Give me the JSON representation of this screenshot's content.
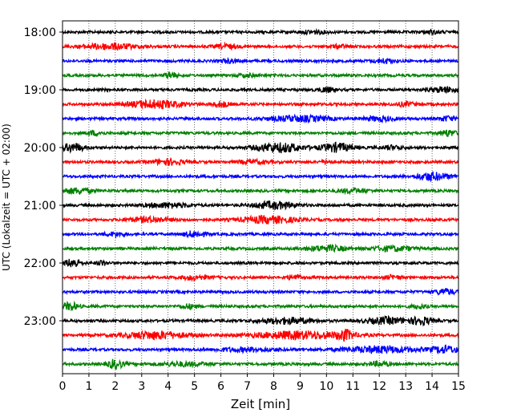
{
  "chart_data": {
    "type": "line",
    "title": "",
    "xlabel": "Zeit  [min]",
    "ylabel": "UTC (Lokalzeit = UTC + 02:00)",
    "xlim": [
      0,
      15
    ],
    "x_ticks": [
      0,
      1,
      2,
      3,
      4,
      5,
      6,
      7,
      8,
      9,
      10,
      11,
      12,
      13,
      14,
      15
    ],
    "y_tick_labels": [
      "18:00",
      "19:00",
      "20:00",
      "21:00",
      "22:00",
      "23:00"
    ],
    "grid": "vertical-dotted",
    "trace_colors": [
      "#000000",
      "#ff0000",
      "#0000ff",
      "#008000"
    ],
    "series": [
      {
        "start": "18:00",
        "color": "#000000",
        "bursts": [
          [
            9.5,
            0.5,
            1.2
          ],
          [
            14.0,
            0.4,
            1.0
          ]
        ]
      },
      {
        "start": "18:15",
        "color": "#ff0000",
        "bursts": [
          [
            1.8,
            1.0,
            2.2
          ],
          [
            6.2,
            0.4,
            1.6
          ],
          [
            10.5,
            0.3,
            1.2
          ]
        ]
      },
      {
        "start": "18:30",
        "color": "#0000ff",
        "bursts": [
          [
            6.3,
            0.3,
            1.2
          ],
          [
            12.2,
            0.4,
            1.6
          ]
        ]
      },
      {
        "start": "18:45",
        "color": "#008000",
        "bursts": [
          [
            4.1,
            0.2,
            2.4
          ],
          [
            7.0,
            0.4,
            1.0
          ]
        ]
      },
      {
        "start": "19:00",
        "color": "#000000",
        "bursts": [
          [
            10.0,
            0.3,
            1.8
          ],
          [
            14.5,
            0.6,
            2.0
          ]
        ]
      },
      {
        "start": "19:15",
        "color": "#ff0000",
        "bursts": [
          [
            3.5,
            1.0,
            3.0
          ],
          [
            6.0,
            0.3,
            2.0
          ],
          [
            13.0,
            0.4,
            1.4
          ]
        ]
      },
      {
        "start": "19:30",
        "color": "#0000ff",
        "bursts": [
          [
            9.0,
            1.2,
            2.0
          ],
          [
            12.0,
            0.6,
            1.6
          ],
          [
            14.6,
            0.3,
            1.8
          ]
        ]
      },
      {
        "start": "19:45",
        "color": "#008000",
        "bursts": [
          [
            1.2,
            0.3,
            1.6
          ],
          [
            14.6,
            0.3,
            2.2
          ]
        ]
      },
      {
        "start": "20:00",
        "color": "#000000",
        "bursts": [
          [
            0.4,
            0.4,
            3.2
          ],
          [
            8.2,
            0.9,
            3.4
          ],
          [
            10.4,
            0.6,
            3.2
          ],
          [
            12.5,
            0.4,
            1.4
          ]
        ]
      },
      {
        "start": "20:15",
        "color": "#ff0000",
        "bursts": [
          [
            4.0,
            0.6,
            2.0
          ],
          [
            7.2,
            0.6,
            1.4
          ],
          [
            10.0,
            0.2,
            1.4
          ]
        ]
      },
      {
        "start": "20:30",
        "color": "#0000ff",
        "bursts": [
          [
            14.0,
            0.6,
            3.0
          ]
        ]
      },
      {
        "start": "20:45",
        "color": "#008000",
        "bursts": [
          [
            0.5,
            0.6,
            2.0
          ],
          [
            11.0,
            0.6,
            1.4
          ]
        ]
      },
      {
        "start": "21:00",
        "color": "#000000",
        "bursts": [
          [
            4.0,
            0.8,
            1.8
          ],
          [
            8.0,
            0.8,
            2.6
          ]
        ]
      },
      {
        "start": "21:15",
        "color": "#ff0000",
        "bursts": [
          [
            3.3,
            0.8,
            1.8
          ],
          [
            7.8,
            1.0,
            2.6
          ]
        ]
      },
      {
        "start": "21:30",
        "color": "#0000ff",
        "bursts": [
          [
            2.0,
            0.4,
            1.4
          ],
          [
            5.0,
            0.4,
            2.2
          ]
        ]
      },
      {
        "start": "21:45",
        "color": "#008000",
        "bursts": [
          [
            10.0,
            0.8,
            2.0
          ],
          [
            12.5,
            0.8,
            1.8
          ]
        ]
      },
      {
        "start": "22:00",
        "color": "#000000",
        "bursts": [
          [
            0.4,
            0.3,
            3.2
          ],
          [
            1.5,
            0.2,
            1.6
          ]
        ]
      },
      {
        "start": "22:15",
        "color": "#ff0000",
        "bursts": [
          [
            5.0,
            0.6,
            1.4
          ],
          [
            8.8,
            0.3,
            1.8
          ],
          [
            12.5,
            0.3,
            1.4
          ]
        ]
      },
      {
        "start": "22:30",
        "color": "#0000ff",
        "bursts": [
          [
            14.5,
            0.4,
            2.0
          ]
        ]
      },
      {
        "start": "22:45",
        "color": "#008000",
        "bursts": [
          [
            0.3,
            0.3,
            2.8
          ],
          [
            4.8,
            0.3,
            1.6
          ],
          [
            13.5,
            0.3,
            1.4
          ]
        ]
      },
      {
        "start": "23:00",
        "color": "#000000",
        "bursts": [
          [
            8.5,
            1.0,
            2.2
          ],
          [
            12.3,
            0.8,
            2.4
          ],
          [
            13.6,
            0.4,
            2.8
          ]
        ]
      },
      {
        "start": "23:15",
        "color": "#ff0000",
        "bursts": [
          [
            3.5,
            1.2,
            2.8
          ],
          [
            9.0,
            1.8,
            2.8
          ],
          [
            10.7,
            0.3,
            3.2
          ]
        ]
      },
      {
        "start": "23:30",
        "color": "#0000ff",
        "bursts": [
          [
            7.0,
            1.2,
            1.4
          ],
          [
            12.0,
            1.4,
            2.4
          ],
          [
            14.5,
            0.5,
            2.6
          ]
        ]
      },
      {
        "start": "23:45",
        "color": "#008000",
        "bursts": [
          [
            2.0,
            0.3,
            3.4
          ],
          [
            4.5,
            1.0,
            1.4
          ],
          [
            12.0,
            0.4,
            1.6
          ]
        ]
      }
    ]
  }
}
